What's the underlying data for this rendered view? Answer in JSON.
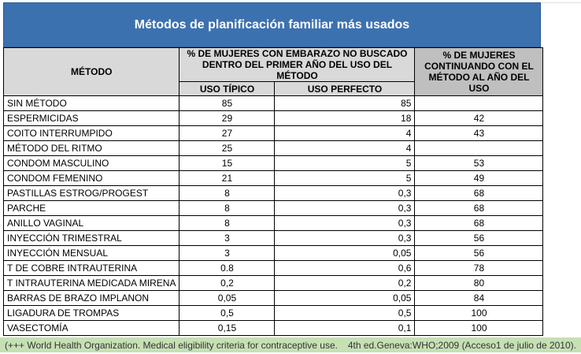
{
  "title": "Métodos de planificación familiar más usados",
  "table": {
    "headers": {
      "method": "MÉTODO",
      "pregnancy": "% DE MUJERES CON EMBARAZO NO BUSCADO DENTRO DEL PRIMER AÑO DEL USO DEL MÉTODO",
      "typical": "USO TÍPICO",
      "perfect": "USO PERFECTO",
      "continuing": "% DE MUJERES CONTINUANDO CON EL MÉTODO AL AÑO DEL USO"
    },
    "rows": [
      [
        "SIN MÉTODO",
        "85",
        "85",
        null
      ],
      [
        "ESPERMICIDAS",
        "29",
        "18",
        "42"
      ],
      [
        "COITO INTERRUMPIDO",
        "27",
        "4",
        "43"
      ],
      [
        "MÉTODO DEL RITMO",
        "25",
        "4",
        null
      ],
      [
        "CONDOM MASCULINO",
        "15",
        "5",
        "53"
      ],
      [
        "CONDOM FEMENINO",
        "21",
        "5",
        "49"
      ],
      [
        "PASTILLAS ESTROG/PROGEST",
        "8",
        "0,3",
        "68"
      ],
      [
        "PARCHE",
        "8",
        "0,3",
        "68"
      ],
      [
        "ANILLO VAGINAL",
        "8",
        "0,3",
        "68"
      ],
      [
        "INYECCIÓN TRIMESTRAL",
        "3",
        "0,3",
        "56"
      ],
      [
        "INYECCIÓN MENSUAL",
        "3",
        "0,05",
        "56"
      ],
      [
        "T DE COBRE INTRAUTERINA",
        "0.8",
        "0,6",
        "78"
      ],
      [
        "T INTRAUTERINA MEDICADA MIRENA",
        "0,2",
        "0,2",
        "80"
      ],
      [
        "BARRAS DE BRAZO IMPLANON",
        "0,05",
        "0,05",
        "84"
      ],
      [
        "LIGADURA DE TROMPAS",
        "0,5",
        "0,5",
        "100"
      ],
      [
        "VASECTOMÍA",
        "0,15",
        "0,1",
        "100"
      ]
    ]
  },
  "footer": {
    "left": "(+++ World Health Organization. Medical eligibility criteria for contraceptive use.",
    "right": "4th ed.Geneva:WHO;2009 (Acceso1 de julio de 2010)."
  }
}
